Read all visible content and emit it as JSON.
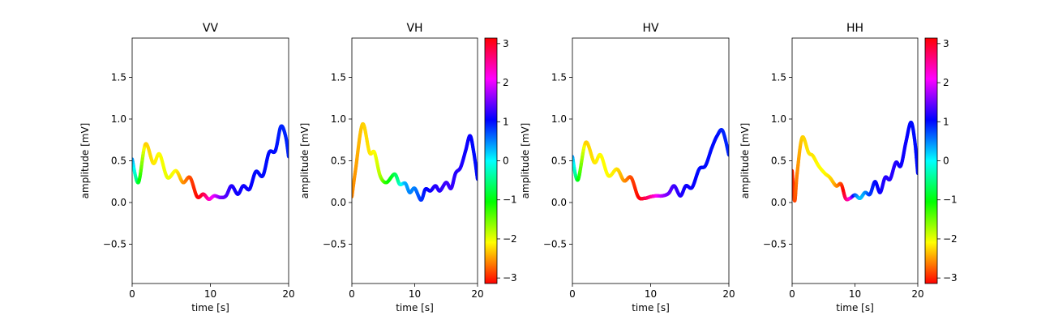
{
  "chart_data": [
    {
      "type": "line",
      "title": "VV",
      "xlabel": "time [s]",
      "ylabel": "amplitude [mV]",
      "xlim": [
        0,
        20
      ],
      "ylim": [
        -0.97,
        1.97
      ],
      "xticks": [
        "0",
        "10",
        "20"
      ],
      "yticks": [
        "−0.5",
        "0.0",
        "0.5",
        "1.0",
        "1.5"
      ],
      "color_encoding": "phase (hsv colormap, range −π..π)",
      "colorbar": false,
      "x": [
        0,
        0.8,
        1.7,
        2.7,
        3.5,
        4.5,
        5.6,
        6.5,
        7.4,
        8.3,
        9.1,
        9.8,
        10.5,
        11.3,
        12,
        12.7,
        13.5,
        14.2,
        15,
        15.8,
        16.7,
        17.5,
        18.3,
        19,
        19.6,
        20
      ],
      "y": [
        0.52,
        0.24,
        0.7,
        0.47,
        0.58,
        0.3,
        0.38,
        0.24,
        0.3,
        0.07,
        0.1,
        0.04,
        0.08,
        0.06,
        0.08,
        0.2,
        0.1,
        0.2,
        0.16,
        0.37,
        0.32,
        0.6,
        0.62,
        0.91,
        0.8,
        0.55
      ],
      "phase": [
        0.5,
        -0.8,
        -2.3,
        -2.2,
        -2.1,
        -2.0,
        -2.1,
        -2.5,
        -2.8,
        -3.1,
        2.9,
        2.4,
        2.0,
        1.6,
        1.4,
        1.2,
        1.1,
        1.1,
        1.1,
        1.0,
        1.0,
        1.0,
        1.0,
        0.9,
        0.9,
        0.9
      ]
    },
    {
      "type": "line",
      "title": "VH",
      "xlabel": "time [s]",
      "ylabel": "amplitude [mV]",
      "xlim": [
        0,
        20
      ],
      "ylim": [
        -0.97,
        1.97
      ],
      "xticks": [
        "0",
        "10",
        "20"
      ],
      "yticks": [
        "−0.5",
        "0.0",
        "0.5",
        "1.0",
        "1.5"
      ],
      "color_encoding": "phase (hsv colormap, range −π..π)",
      "colorbar": true,
      "colorbar_ticks": [
        "3",
        "2",
        "1",
        "0",
        "−1",
        "−2",
        "−3"
      ],
      "x": [
        0,
        0.6,
        1.7,
        2.8,
        3.6,
        4.5,
        5.5,
        6.8,
        7.6,
        8.5,
        9.2,
        10,
        11,
        11.7,
        12.5,
        13.3,
        14,
        15,
        15.8,
        16.5,
        17.3,
        18.1,
        18.8,
        19.4,
        20
      ],
      "y": [
        0.07,
        0.4,
        0.94,
        0.6,
        0.6,
        0.32,
        0.24,
        0.34,
        0.22,
        0.23,
        0.12,
        0.17,
        0.03,
        0.16,
        0.14,
        0.2,
        0.14,
        0.24,
        0.17,
        0.35,
        0.42,
        0.62,
        0.8,
        0.6,
        0.28
      ],
      "phase": [
        -2.6,
        -2.5,
        -2.3,
        -2.2,
        -2.1,
        -1.8,
        -1.2,
        -0.8,
        -0.3,
        0.3,
        0.5,
        0.5,
        0.8,
        1.0,
        1.1,
        1.2,
        1.2,
        1.3,
        1.3,
        1.2,
        1.2,
        1.1,
        1.1,
        1.0,
        1.0
      ]
    },
    {
      "type": "line",
      "title": "HV",
      "xlabel": "time [s]",
      "ylabel": "amplitude [mV]",
      "xlim": [
        0,
        20
      ],
      "ylim": [
        -0.97,
        1.97
      ],
      "xticks": [
        "0",
        "10",
        "20"
      ],
      "yticks": [
        "−0.5",
        "0.0",
        "0.5",
        "1.0",
        "1.5"
      ],
      "color_encoding": "phase (hsv colormap, range −π..π)",
      "colorbar": false,
      "x": [
        0,
        0.7,
        1.7,
        2.8,
        3.6,
        4.6,
        5.7,
        6.6,
        7.5,
        8.4,
        9.2,
        10,
        10.7,
        11.5,
        12.3,
        13,
        13.8,
        14.5,
        15.3,
        16.2,
        17,
        17.8,
        18.5,
        19.2,
        20
      ],
      "y": [
        0.55,
        0.27,
        0.72,
        0.48,
        0.57,
        0.32,
        0.4,
        0.26,
        0.3,
        0.07,
        0.05,
        0.07,
        0.08,
        0.08,
        0.11,
        0.2,
        0.08,
        0.2,
        0.18,
        0.4,
        0.44,
        0.65,
        0.8,
        0.86,
        0.57
      ],
      "phase": [
        0.5,
        -0.9,
        -2.3,
        -2.2,
        -2.1,
        -2.1,
        -2.2,
        -2.5,
        -2.8,
        -3.1,
        2.9,
        2.6,
        2.2,
        1.8,
        1.5,
        1.3,
        1.2,
        1.1,
        1.1,
        1.0,
        1.0,
        1.0,
        1.0,
        0.9,
        0.9
      ]
    },
    {
      "type": "line",
      "title": "HH",
      "xlabel": "time [s]",
      "ylabel": "amplitude [mV]",
      "xlim": [
        0,
        20
      ],
      "ylim": [
        -0.97,
        1.97
      ],
      "xticks": [
        "0",
        "10",
        "20"
      ],
      "yticks": [
        "−0.5",
        "0.0",
        "0.5",
        "1.0",
        "1.5"
      ],
      "color_encoding": "phase (hsv colormap, range −π..π)",
      "colorbar": true,
      "colorbar_ticks": [
        "3",
        "2",
        "1",
        "0",
        "−1",
        "−2",
        "−3"
      ],
      "x": [
        0,
        0.4,
        0.8,
        1.6,
        2.6,
        3.3,
        4.2,
        5.2,
        6,
        7,
        7.8,
        8.5,
        9.2,
        10,
        10.8,
        11.6,
        12.4,
        13.2,
        14,
        14.8,
        15.6,
        16.5,
        17.3,
        18.1,
        18.9,
        19.5,
        20
      ],
      "y": [
        0.38,
        0.02,
        0.35,
        0.78,
        0.6,
        0.56,
        0.44,
        0.35,
        0.3,
        0.2,
        0.22,
        0.05,
        0.05,
        0.09,
        0.05,
        0.12,
        0.1,
        0.25,
        0.12,
        0.3,
        0.28,
        0.48,
        0.44,
        0.72,
        0.96,
        0.75,
        0.35
      ],
      "phase": [
        -3.0,
        -2.9,
        -2.6,
        -2.3,
        -2.2,
        -2.2,
        -2.1,
        -2.1,
        -2.2,
        -2.5,
        -2.8,
        2.8,
        2.3,
        0.8,
        0.2,
        0.4,
        0.8,
        1.0,
        1.1,
        1.2,
        1.2,
        1.2,
        1.1,
        1.1,
        1.0,
        1.0,
        1.0
      ]
    }
  ]
}
